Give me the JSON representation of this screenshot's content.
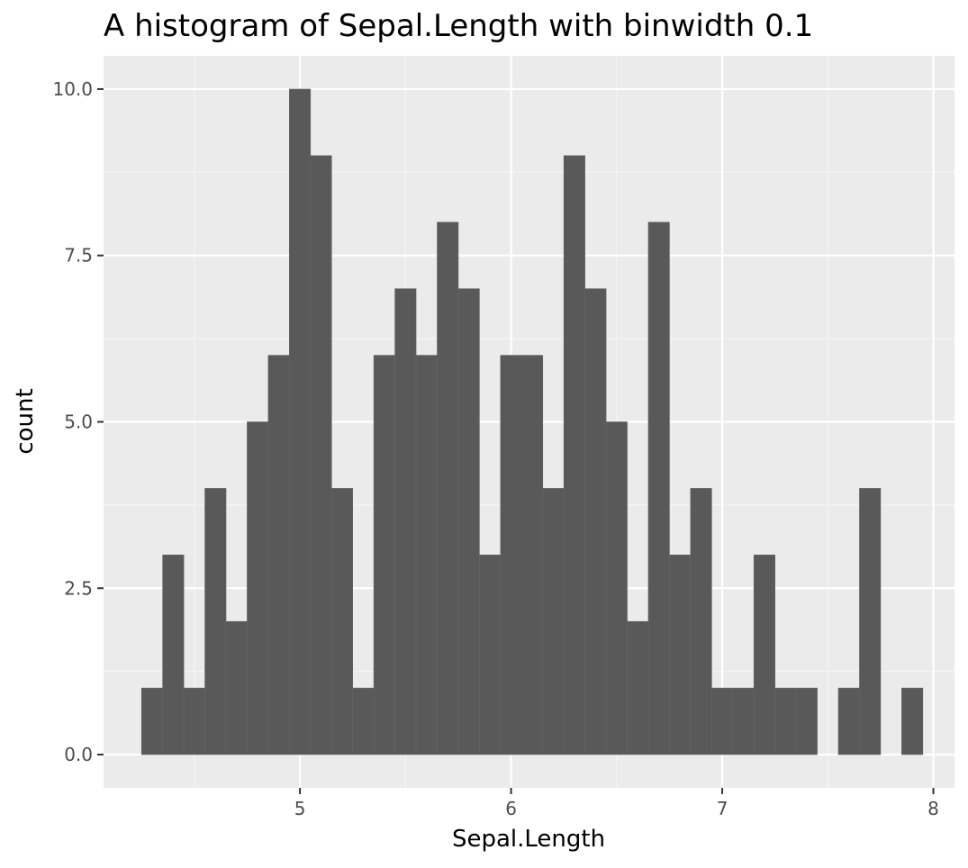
{
  "chart_data": {
    "type": "bar",
    "title": "A histogram of Sepal.Length with binwidth 0.1",
    "xlabel": "Sepal.Length",
    "ylabel": "count",
    "xlim": [
      4.07,
      8.1
    ],
    "ylim": [
      -0.5,
      10.5
    ],
    "binwidth": 0.1,
    "x_ticks": [
      5,
      6,
      7,
      8
    ],
    "x_tick_labels": [
      "5",
      "6",
      "7",
      "8"
    ],
    "y_ticks": [
      0,
      2.5,
      5,
      7.5,
      10
    ],
    "y_tick_labels": [
      "0.0",
      "2.5",
      "5.0",
      "7.5",
      "10.0"
    ],
    "bins": [
      {
        "x": 4.3,
        "count": 1
      },
      {
        "x": 4.4,
        "count": 3
      },
      {
        "x": 4.5,
        "count": 1
      },
      {
        "x": 4.6,
        "count": 4
      },
      {
        "x": 4.7,
        "count": 2
      },
      {
        "x": 4.8,
        "count": 5
      },
      {
        "x": 4.9,
        "count": 6
      },
      {
        "x": 5.0,
        "count": 10
      },
      {
        "x": 5.1,
        "count": 9
      },
      {
        "x": 5.2,
        "count": 4
      },
      {
        "x": 5.3,
        "count": 1
      },
      {
        "x": 5.4,
        "count": 6
      },
      {
        "x": 5.5,
        "count": 7
      },
      {
        "x": 5.6,
        "count": 6
      },
      {
        "x": 5.7,
        "count": 8
      },
      {
        "x": 5.8,
        "count": 7
      },
      {
        "x": 5.9,
        "count": 3
      },
      {
        "x": 6.0,
        "count": 6
      },
      {
        "x": 6.1,
        "count": 6
      },
      {
        "x": 6.2,
        "count": 4
      },
      {
        "x": 6.3,
        "count": 9
      },
      {
        "x": 6.4,
        "count": 7
      },
      {
        "x": 6.5,
        "count": 5
      },
      {
        "x": 6.6,
        "count": 2
      },
      {
        "x": 6.7,
        "count": 8
      },
      {
        "x": 6.8,
        "count": 3
      },
      {
        "x": 6.9,
        "count": 4
      },
      {
        "x": 7.0,
        "count": 1
      },
      {
        "x": 7.1,
        "count": 1
      },
      {
        "x": 7.2,
        "count": 3
      },
      {
        "x": 7.3,
        "count": 1
      },
      {
        "x": 7.4,
        "count": 1
      },
      {
        "x": 7.5,
        "count": 0
      },
      {
        "x": 7.6,
        "count": 1
      },
      {
        "x": 7.7,
        "count": 4
      },
      {
        "x": 7.8,
        "count": 0
      },
      {
        "x": 7.9,
        "count": 1
      }
    ],
    "grid": true,
    "legend": "none",
    "colors": {
      "panel_background": "#ebebeb",
      "grid_major": "#ffffff",
      "grid_minor": "#f5f5f5",
      "bar_fill": "#595959",
      "tick_mark": "#333333"
    }
  }
}
